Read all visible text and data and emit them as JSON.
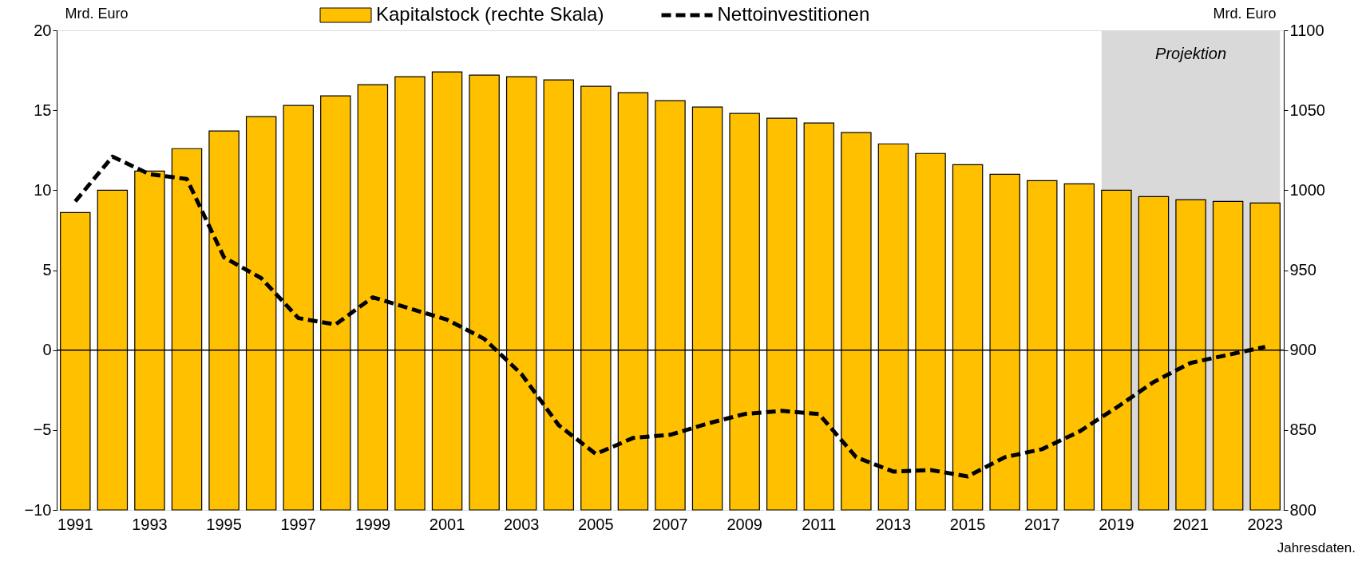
{
  "chart_data": {
    "type": "bar",
    "categories": [
      "1991",
      null,
      "1993",
      null,
      "1995",
      null,
      "1997",
      null,
      "1999",
      null,
      "2001",
      null,
      "2003",
      null,
      "2005",
      null,
      "2007",
      null,
      "2009",
      null,
      "2011",
      null,
      "2013",
      null,
      "2015",
      null,
      "2017",
      null,
      "2019",
      null,
      "2021",
      null,
      "2023"
    ],
    "series": [
      {
        "name": "Kapitalstock (rechte Skala)",
        "axis": "y2",
        "color": "#ffc000",
        "values": [
          986,
          1000,
          1012,
          1026,
          1037,
          1046,
          1053,
          1059,
          1066,
          1071,
          1074,
          1072,
          1071,
          1069,
          1065,
          1061,
          1056,
          1052,
          1048,
          1045,
          1042,
          1036,
          1029,
          1023,
          1016,
          1010,
          1006,
          1004,
          1000,
          996,
          994,
          993,
          992
        ]
      },
      {
        "name": "Nettoinvestitionen",
        "type": "line",
        "line_style": "dashed",
        "color": "#000000",
        "values": [
          9.3,
          12.1,
          11.0,
          10.7,
          5.8,
          4.5,
          2.0,
          1.6,
          3.3,
          2.6,
          1.9,
          0.7,
          -1.5,
          -4.7,
          -6.5,
          -5.5,
          -5.3,
          -4.6,
          -4.0,
          -3.8,
          -4.0,
          -6.7,
          -7.6,
          -7.5,
          -7.9,
          -6.7,
          -6.2,
          -5.1,
          -3.6,
          -2.0,
          -0.8,
          -0.3,
          0.2
        ]
      }
    ],
    "ylabel": "Mrd. Euro",
    "y2label": "Mrd. Euro",
    "ylim": [
      -10,
      20
    ],
    "yticks": [
      -10,
      -5,
      0,
      5,
      10,
      15,
      20
    ],
    "y2lim": [
      800,
      1100
    ],
    "y2ticks": [
      800,
      850,
      900,
      950,
      1000,
      1050,
      1100
    ],
    "bands": [
      {
        "axis": "x",
        "from": "2019",
        "to": "2023",
        "label": "Projektion",
        "color": "#d9d9d9"
      }
    ],
    "ref_lines": [
      {
        "axis": "y",
        "value": 0,
        "color": "#000000"
      }
    ],
    "annotations": [
      "Jahresdaten."
    ],
    "legend": "top",
    "grid": false,
    "marker": "none"
  }
}
